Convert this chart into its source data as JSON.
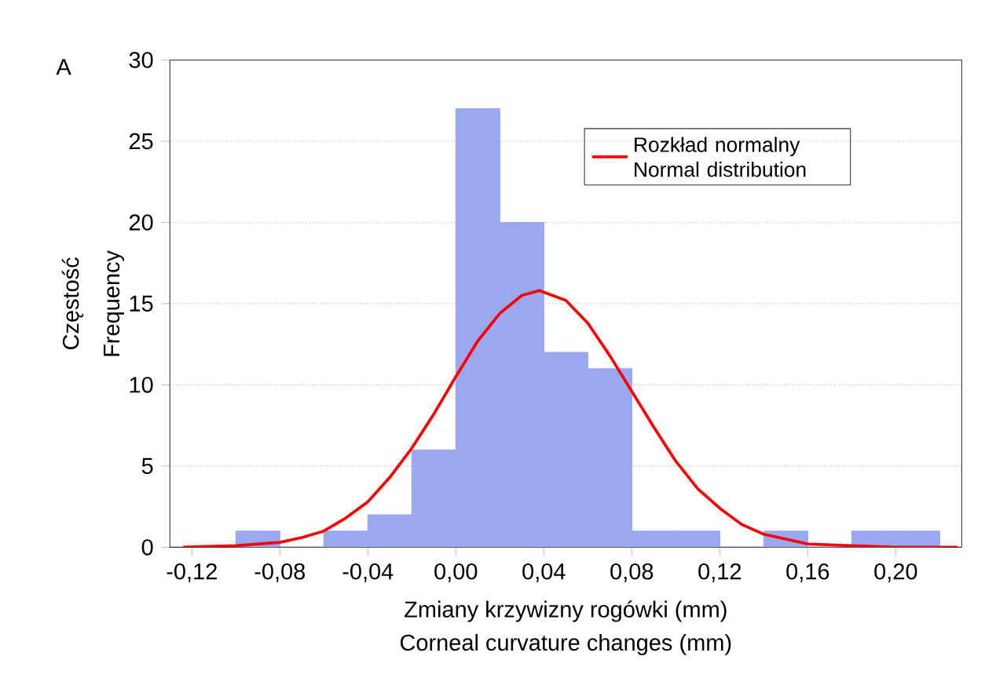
{
  "chart_data": {
    "type": "histogram",
    "title": "A",
    "xlabel": "Zmiany krzywizny rogówki (mm)",
    "ylabel": "Częstość",
    "annotations": [
      "Corneal curvature changes (mm)",
      "Frequency"
    ],
    "bins": [
      -0.1,
      -0.08,
      -0.06,
      -0.04,
      -0.02,
      0.0,
      0.02,
      0.04,
      0.06,
      0.08,
      0.1,
      0.12,
      0.14,
      0.16,
      0.18,
      0.2,
      0.22
    ],
    "values": [
      1,
      0,
      1,
      2,
      6,
      27,
      20,
      12,
      11,
      1,
      1,
      0,
      1,
      0,
      1,
      1
    ],
    "color": "#9aa8f0",
    "series": [
      {
        "name": "Rozkład normalny Normal distribution",
        "type": "line",
        "color": "#ff0000",
        "x": [
          -0.124,
          -0.1,
          -0.08,
          -0.07,
          -0.06,
          -0.05,
          -0.04,
          -0.03,
          -0.02,
          -0.01,
          0.0,
          0.01,
          0.02,
          0.03,
          0.038,
          0.05,
          0.06,
          0.07,
          0.08,
          0.09,
          0.1,
          0.11,
          0.12,
          0.13,
          0.14,
          0.15,
          0.16,
          0.18,
          0.2,
          0.228
        ],
        "values": [
          0.0,
          0.1,
          0.3,
          0.6,
          1.0,
          1.8,
          2.8,
          4.3,
          6.1,
          8.2,
          10.5,
          12.7,
          14.4,
          15.5,
          15.8,
          15.2,
          13.8,
          11.8,
          9.6,
          7.4,
          5.3,
          3.6,
          2.4,
          1.4,
          0.8,
          0.5,
          0.2,
          0.1,
          0.0,
          0.0
        ]
      }
    ],
    "xlim": [
      -0.13,
      0.23
    ],
    "ylim": [
      0,
      30
    ],
    "xticks": [
      {
        "value": -0.12,
        "label": "-0,12"
      },
      {
        "value": -0.08,
        "label": "-0,08"
      },
      {
        "value": -0.04,
        "label": "-0,04"
      },
      {
        "value": 0.0,
        "label": "0,00"
      },
      {
        "value": 0.04,
        "label": "0,04"
      },
      {
        "value": 0.08,
        "label": "0,08"
      },
      {
        "value": 0.12,
        "label": "0,12"
      },
      {
        "value": 0.16,
        "label": "0,16"
      },
      {
        "value": 0.2,
        "label": "0,20"
      }
    ],
    "yticks": [
      0,
      5,
      10,
      15,
      20,
      25,
      30
    ],
    "grid": "y",
    "legend": "top right",
    "marker": "none",
    "line_style": "solid"
  }
}
